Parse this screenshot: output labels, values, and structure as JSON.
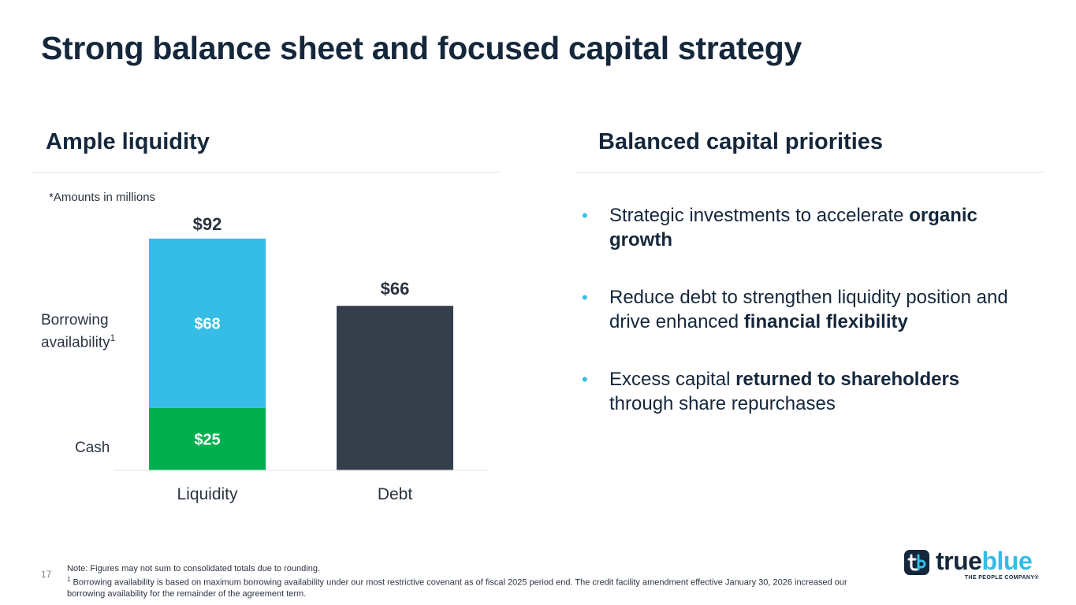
{
  "page": {
    "title": "Strong balance sheet and focused capital strategy",
    "number": "17"
  },
  "left": {
    "heading": "Ample liquidity",
    "units_note": "*Amounts in millions",
    "legend": {
      "borrowing_line1": "Borrowing",
      "borrowing_line2": "availability",
      "borrowing_sup": "1",
      "cash": "Cash"
    }
  },
  "chart_data": {
    "type": "bar",
    "stacked": true,
    "categories": [
      "Liquidity",
      "Debt"
    ],
    "series": [
      {
        "name": "Cash",
        "values": [
          25,
          null
        ],
        "labels": [
          "$25",
          null
        ],
        "color": "#00b04f"
      },
      {
        "name": "Borrowing availability",
        "values": [
          68,
          null
        ],
        "labels": [
          "$68",
          null
        ],
        "color": "#35bde6"
      },
      {
        "name": "Debt",
        "values": [
          null,
          66
        ],
        "labels": [
          null,
          null
        ],
        "color": "#343f4b"
      }
    ],
    "totals": [
      92,
      66
    ],
    "total_labels": [
      "$92",
      "$66"
    ],
    "ylim": [
      0,
      92
    ],
    "title": "",
    "xlabel": "",
    "ylabel": ""
  },
  "right": {
    "heading": "Balanced capital priorities",
    "bullets": [
      {
        "pre": "Strategic investments to accelerate ",
        "bold": "organic growth",
        "post": ""
      },
      {
        "pre": "Reduce debt to strengthen liquidity position and drive enhanced ",
        "bold": "financial flexibility",
        "post": ""
      },
      {
        "pre": "Excess capital ",
        "bold": "returned to shareholders",
        "post": " through share repurchases"
      }
    ],
    "bullet_symbol": "•"
  },
  "footer": {
    "note": "Note: Figures may not sum to consolidated totals due to rounding.",
    "footnote_sup": "1",
    "footnote": " Borrowing availability is based on maximum borrowing availability under our most restrictive covenant as of fiscal 2025 period end. The credit facility amendment effective January 30, 2026 increased our borrowing availability for the remainder of the agreement term."
  },
  "logo": {
    "word1": "true",
    "word2": "blue",
    "tagline": "THE PEOPLE COMPANY®",
    "mark_glyph": "tb",
    "brand_color": "#35bde6",
    "dark_color": "#15273b"
  }
}
